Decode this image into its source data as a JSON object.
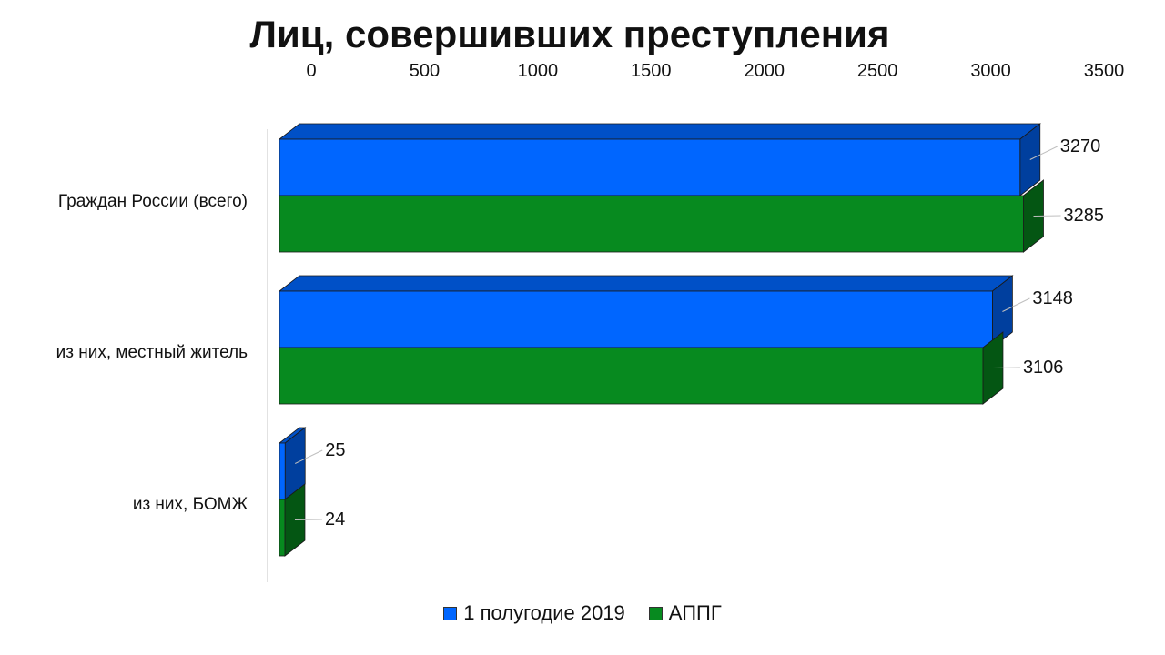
{
  "chart_data": {
    "type": "bar",
    "orientation": "horizontal",
    "style": "3d",
    "title": "Лиц, совершивших преступления",
    "x_axis_position": "top",
    "xlim": [
      0,
      3500
    ],
    "xticks": [
      0,
      500,
      1000,
      1500,
      2000,
      2500,
      3000,
      3500
    ],
    "tick_labels": [
      "0",
      "500",
      "1000",
      "1500",
      "2000",
      "2500",
      "3000",
      "3500"
    ],
    "categories": [
      "Граждан России (всего)",
      "из них, местный житель",
      "из них, БОМЖ"
    ],
    "series": [
      {
        "name": "1 полугодие 2019",
        "color": "#0066ff",
        "values": [
          3270,
          3148,
          25
        ],
        "value_labels": [
          "3270",
          "3148",
          "25"
        ]
      },
      {
        "name": "АППГ",
        "color": "#078a1f",
        "values": [
          3285,
          3106,
          24
        ],
        "value_labels": [
          "3285",
          "3106",
          "24"
        ]
      }
    ],
    "data_labels": true,
    "grid": false,
    "legend_position": "bottom"
  }
}
